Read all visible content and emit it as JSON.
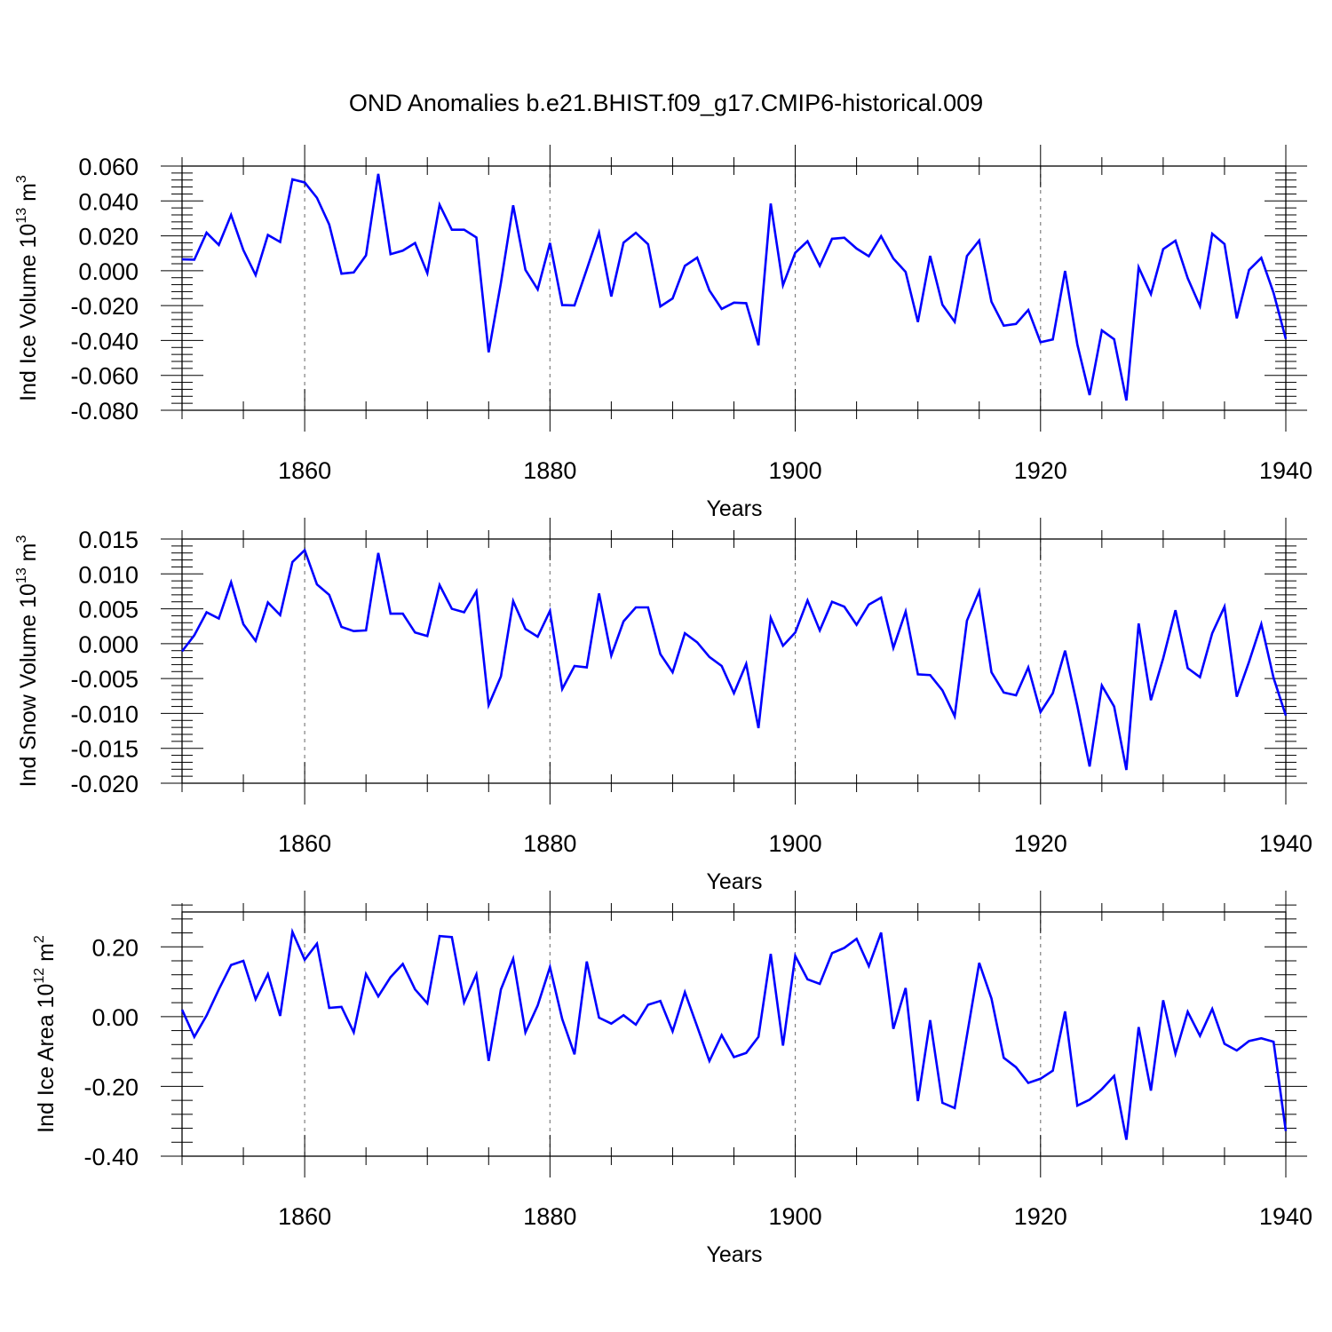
{
  "title": "OND Anomalies b.e21.BHIST.f09_g17.CMIP6-historical.009",
  "colors": {
    "series": "#0000ff",
    "axis": "#000000",
    "grid": "#808080"
  },
  "chart_data": [
    {
      "type": "line",
      "ylabel": {
        "text": "Ind Ice Volume 10",
        "exp": "13",
        "unit": " m",
        "unit_exp": "3"
      },
      "xlabel": "Years",
      "xlim": [
        1850,
        1940
      ],
      "ylim": [
        -0.08,
        0.06
      ],
      "yticks": [
        0.06,
        0.04,
        0.02,
        0.0,
        -0.02,
        -0.04,
        -0.06,
        -0.08
      ],
      "ytick_labels": [
        "0.060",
        "0.040",
        "0.020",
        "0.000",
        "-0.020",
        "-0.040",
        "-0.060",
        "-0.080"
      ],
      "xticks": [
        1860,
        1880,
        1900,
        1920,
        1940
      ],
      "xtick_labels": [
        "1860",
        "1880",
        "1900",
        "1920",
        "1940"
      ],
      "grid": "vertical-dashed",
      "x_start": 1850,
      "values": [
        0.0065,
        0.0063,
        0.0218,
        0.0148,
        0.032,
        0.0118,
        -0.0025,
        0.0205,
        0.0165,
        0.0524,
        0.0506,
        0.0418,
        0.0265,
        -0.0017,
        -0.001,
        0.0088,
        0.0555,
        0.0095,
        0.0115,
        0.0159,
        -0.0014,
        0.0378,
        0.0235,
        0.0235,
        0.0191,
        -0.0468,
        -0.007,
        0.0375,
        0.0005,
        -0.0107,
        0.0159,
        -0.0197,
        -0.0199,
        0.0008,
        0.0218,
        -0.0148,
        0.0161,
        0.0217,
        0.0152,
        -0.0205,
        -0.0159,
        0.0028,
        0.0075,
        -0.0113,
        -0.0219,
        -0.0183,
        -0.0186,
        -0.0428,
        0.0385,
        -0.0083,
        0.0103,
        0.0169,
        0.0028,
        0.0183,
        0.0189,
        0.0127,
        0.0083,
        0.0198,
        0.007,
        -0.0007,
        -0.0294,
        0.0085,
        -0.0195,
        -0.0293,
        0.0084,
        0.0173,
        -0.0178,
        -0.0315,
        -0.0305,
        -0.0225,
        -0.041,
        -0.0394,
        -0.0001,
        -0.0423,
        -0.0713,
        -0.0342,
        -0.0393,
        -0.0744,
        0.0019,
        -0.0134,
        0.0124,
        0.0172,
        -0.0043,
        -0.0203,
        0.0212,
        0.0153,
        -0.0273,
        0.0004,
        0.0074,
        -0.0127,
        -0.0391
      ]
    },
    {
      "type": "line",
      "ylabel": {
        "text": "Ind Snow Volume 10",
        "exp": "13",
        "unit": " m",
        "unit_exp": "3"
      },
      "xlabel": "Years",
      "xlim": [
        1850,
        1940
      ],
      "ylim": [
        -0.02,
        0.015
      ],
      "yticks": [
        0.015,
        0.01,
        0.005,
        0.0,
        -0.005,
        -0.01,
        -0.015,
        -0.02
      ],
      "ytick_labels": [
        "0.015",
        "0.010",
        "0.005",
        "0.000",
        "-0.005",
        "-0.010",
        "-0.015",
        "-0.020"
      ],
      "xticks": [
        1860,
        1880,
        1900,
        1920,
        1940
      ],
      "xtick_labels": [
        "1860",
        "1880",
        "1900",
        "1920",
        "1940"
      ],
      "grid": "vertical-dashed",
      "x_start": 1850,
      "values": [
        -0.0011,
        0.0012,
        0.0045,
        0.0036,
        0.0088,
        0.0028,
        0.0004,
        0.0059,
        0.0041,
        0.0117,
        0.0134,
        0.0085,
        0.007,
        0.0024,
        0.0018,
        0.0019,
        0.013,
        0.0043,
        0.0043,
        0.0016,
        0.0011,
        0.0084,
        0.005,
        0.0045,
        0.0075,
        -0.0088,
        -0.0047,
        0.0061,
        0.0021,
        0.001,
        0.0047,
        -0.0065,
        -0.0032,
        -0.0034,
        0.0072,
        -0.0017,
        0.0032,
        0.0052,
        0.0052,
        -0.0015,
        -0.0041,
        0.0015,
        0.0002,
        -0.0019,
        -0.0032,
        -0.0071,
        -0.0029,
        -0.0121,
        0.0037,
        -0.0003,
        0.0016,
        0.0062,
        0.0019,
        0.006,
        0.0053,
        0.0027,
        0.0056,
        0.0066,
        -0.0006,
        0.0046,
        -0.0044,
        -0.0045,
        -0.0067,
        -0.0104,
        0.0033,
        0.0075,
        -0.0041,
        -0.007,
        -0.0074,
        -0.0034,
        -0.0098,
        -0.0071,
        -0.001,
        -0.0089,
        -0.0176,
        -0.006,
        -0.009,
        -0.0181,
        0.0029,
        -0.0081,
        -0.0021,
        0.0048,
        -0.0035,
        -0.0048,
        0.0015,
        0.0053,
        -0.0076,
        -0.0026,
        0.0028,
        -0.0049,
        -0.0103
      ]
    },
    {
      "type": "line",
      "ylabel": {
        "text": "Ind Ice Area 10",
        "exp": "12",
        "unit": " m",
        "unit_exp": "2"
      },
      "xlabel": "Years",
      "xlim": [
        1850,
        1940
      ],
      "ylim": [
        -0.4,
        0.3
      ],
      "yticks": [
        0.2,
        0.0,
        -0.2,
        -0.4
      ],
      "ytick_labels": [
        "0.20",
        "0.00",
        "-0.20",
        "-0.40"
      ],
      "xticks": [
        1860,
        1880,
        1900,
        1920,
        1940
      ],
      "xtick_labels": [
        "1860",
        "1880",
        "1900",
        "1920",
        "1940"
      ],
      "grid": "vertical-dashed",
      "x_start": 1850,
      "values": [
        0.02,
        -0.058,
        0.003,
        0.078,
        0.148,
        0.16,
        0.05,
        0.122,
        0.002,
        0.243,
        0.163,
        0.209,
        0.025,
        0.028,
        -0.045,
        0.122,
        0.058,
        0.113,
        0.151,
        0.078,
        0.038,
        0.231,
        0.228,
        0.041,
        0.121,
        -0.127,
        0.078,
        0.166,
        -0.045,
        0.032,
        0.142,
        -0.007,
        -0.108,
        0.158,
        -0.003,
        -0.02,
        0.004,
        -0.023,
        0.034,
        0.045,
        -0.042,
        0.07,
        -0.028,
        -0.127,
        -0.053,
        -0.116,
        -0.104,
        -0.058,
        0.18,
        -0.083,
        0.174,
        0.107,
        0.094,
        0.182,
        0.197,
        0.223,
        0.145,
        0.241,
        -0.035,
        0.082,
        -0.242,
        -0.01,
        -0.247,
        -0.262,
        -0.054,
        0.154,
        0.052,
        -0.118,
        -0.145,
        -0.19,
        -0.178,
        -0.155,
        0.015,
        -0.255,
        -0.238,
        -0.208,
        -0.17,
        -0.353,
        -0.03,
        -0.212,
        0.047,
        -0.106,
        0.014,
        -0.055,
        0.022,
        -0.078,
        -0.097,
        -0.07,
        -0.062,
        -0.072,
        -0.328
      ]
    }
  ]
}
